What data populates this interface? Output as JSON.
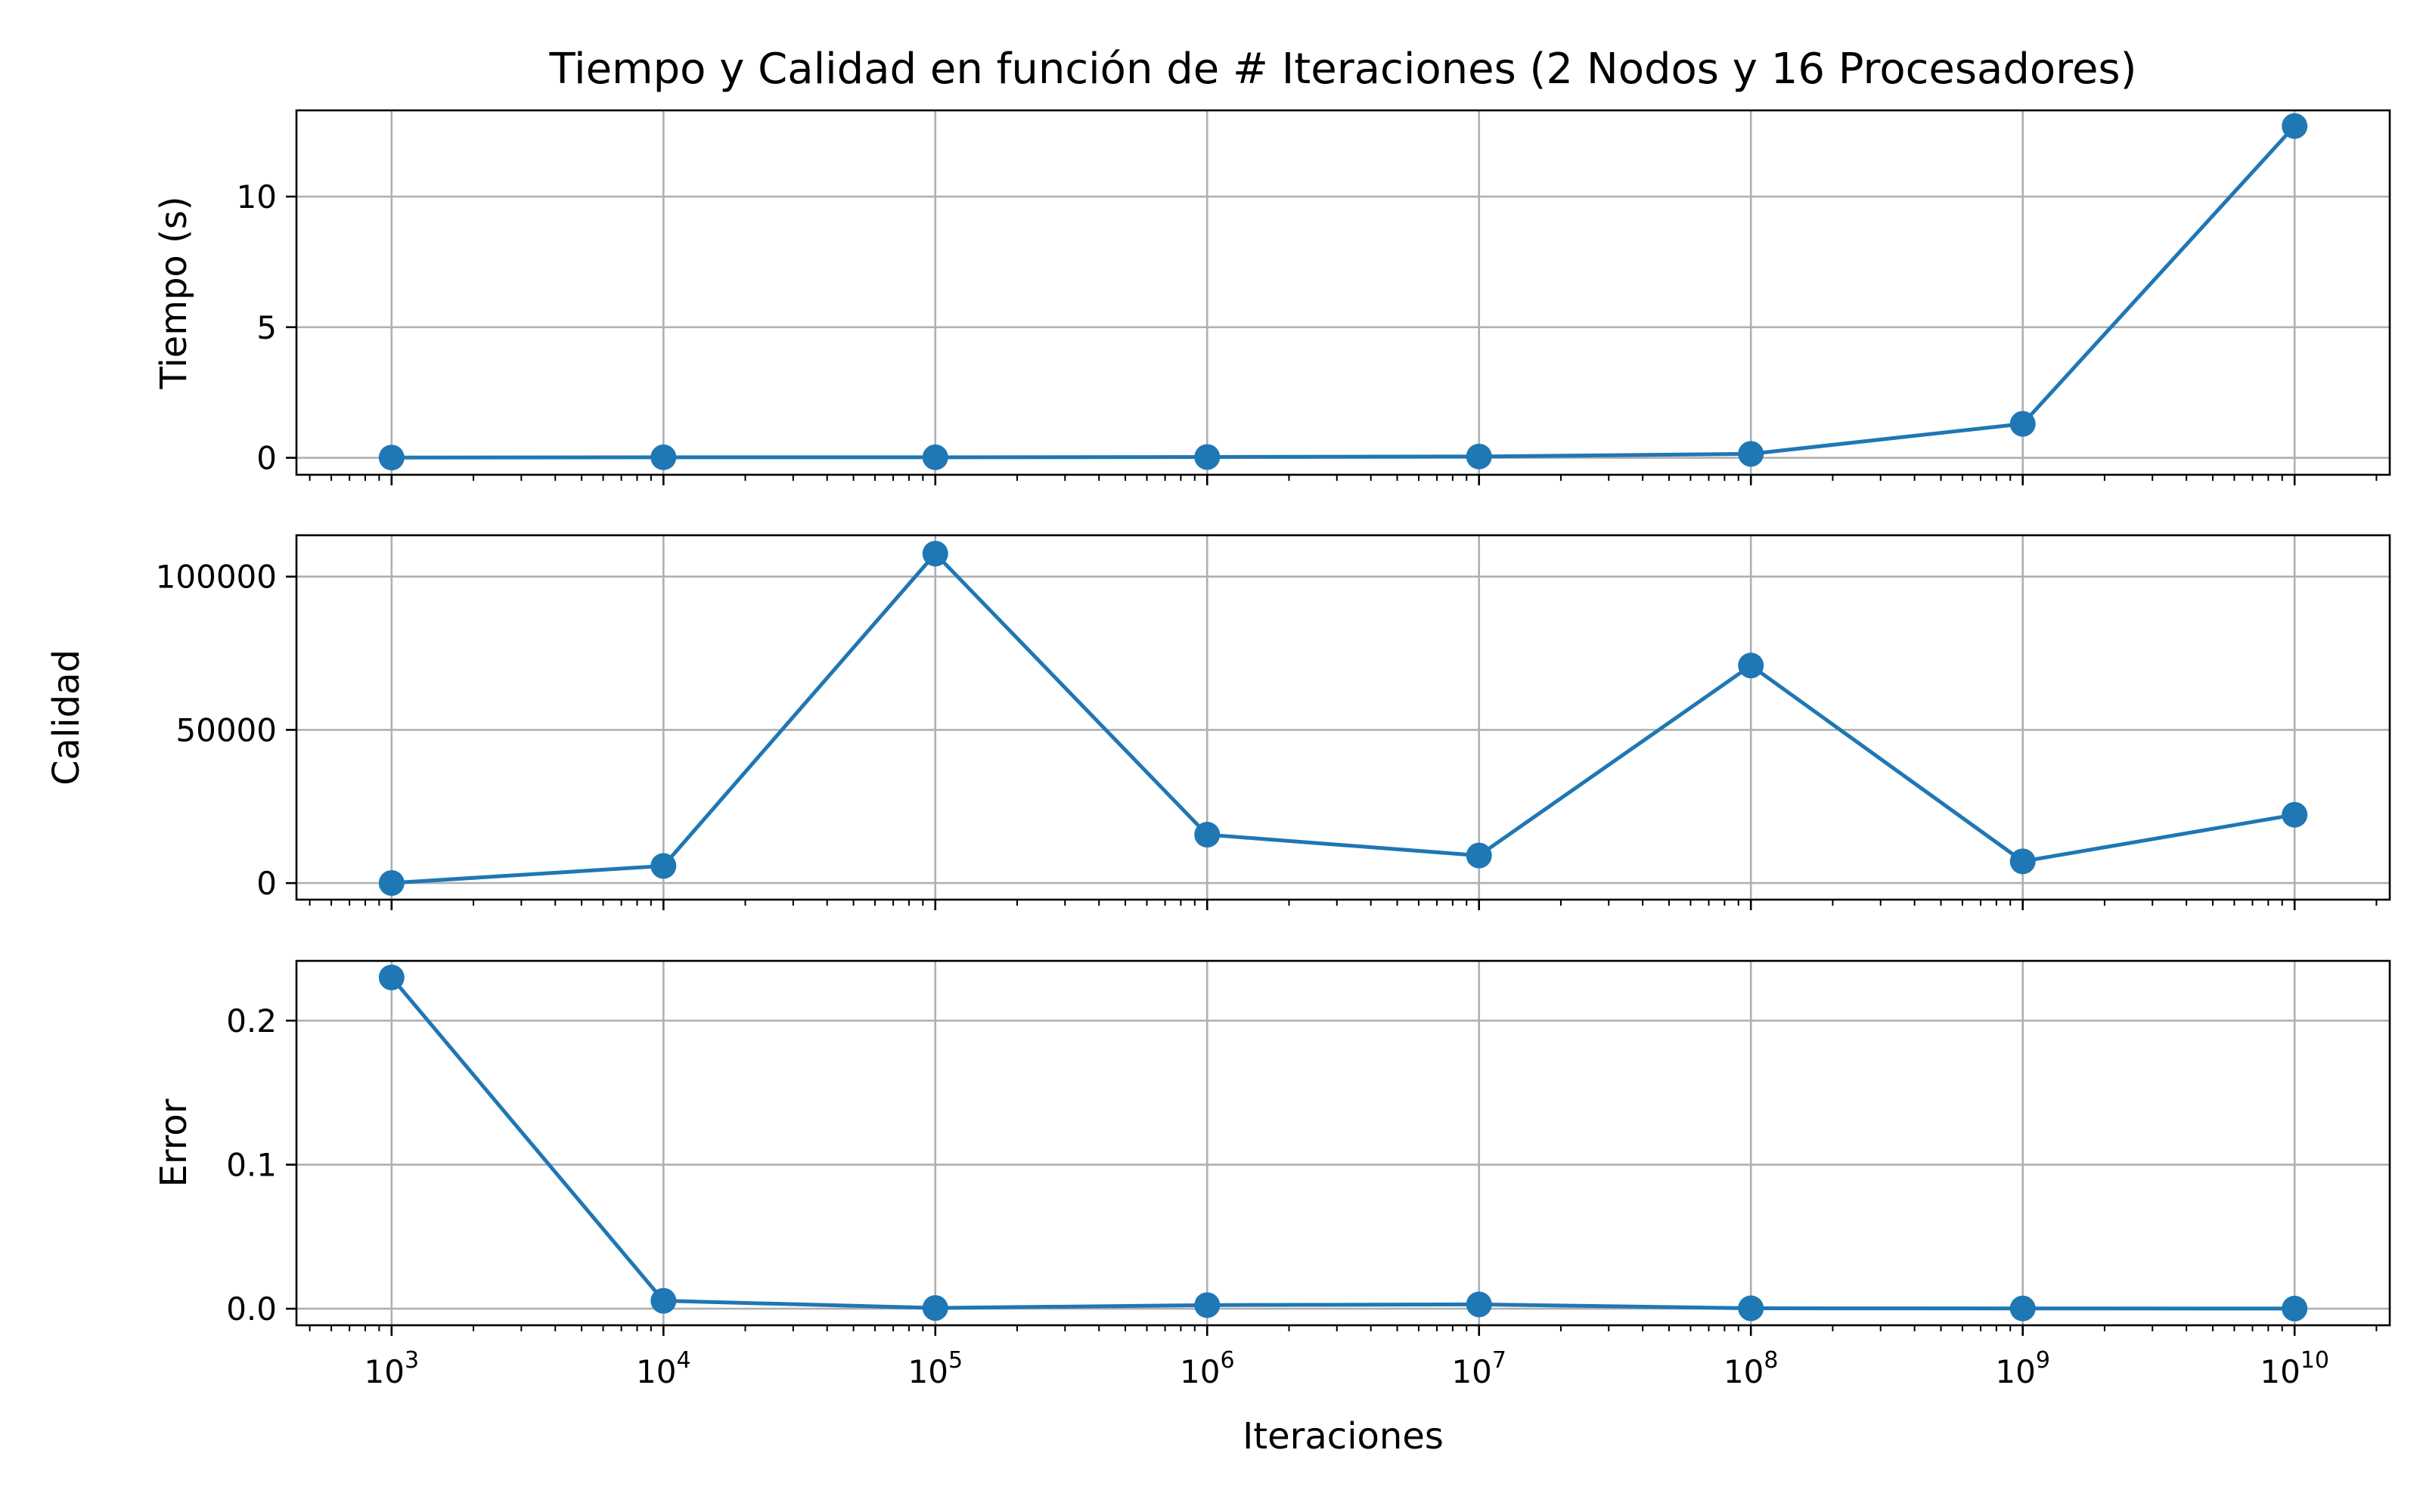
{
  "chart_data": {
    "type": "line",
    "title": "Tiempo y Calidad en función de # Iteraciones (2 Nodos y 16 Procesadores)",
    "xlabel": "Iteraciones",
    "x_scale": "log",
    "x": [
      1000,
      10000,
      100000,
      1000000,
      10000000,
      100000000,
      1000000000,
      10000000000
    ],
    "x_tick_labels": [
      {
        "base": "10",
        "exp": "3"
      },
      {
        "base": "10",
        "exp": "4"
      },
      {
        "base": "10",
        "exp": "5"
      },
      {
        "base": "10",
        "exp": "6"
      },
      {
        "base": "10",
        "exp": "7"
      },
      {
        "base": "10",
        "exp": "8"
      },
      {
        "base": "10",
        "exp": "9"
      },
      {
        "base": "10",
        "exp": "10"
      }
    ],
    "grid": true,
    "color": "#1f77b4",
    "panels": [
      {
        "ylabel": "Tiempo (s)",
        "ylim": [
          -0.65,
          13.3
        ],
        "yticks": [
          0,
          5,
          10
        ],
        "ytick_labels": [
          "0",
          "5",
          "10"
        ],
        "values": [
          0.01,
          0.02,
          0.02,
          0.03,
          0.05,
          0.15,
          1.3,
          12.7
        ]
      },
      {
        "ylabel": "Calidad",
        "ylim": [
          -5400,
          113500
        ],
        "yticks": [
          0,
          50000,
          100000
        ],
        "ytick_labels": [
          "0",
          "50000",
          "100000"
        ],
        "values": [
          30,
          5600,
          107500,
          15800,
          9000,
          71000,
          7100,
          22300
        ]
      },
      {
        "ylabel": "Error",
        "ylim": [
          -0.0115,
          0.2415
        ],
        "yticks": [
          0.0,
          0.1,
          0.2
        ],
        "ytick_labels": [
          "0.0",
          "0.1",
          "0.2"
        ],
        "values": [
          0.23,
          0.0055,
          0.0005,
          0.0025,
          0.003,
          0.0003,
          0.0002,
          0.0001
        ]
      }
    ]
  }
}
